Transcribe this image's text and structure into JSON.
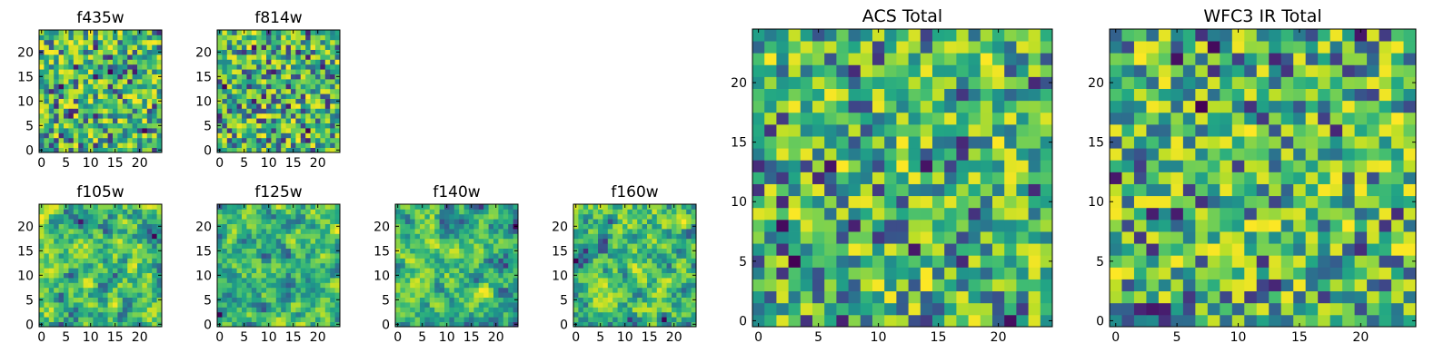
{
  "chart_data": [
    {
      "type": "heatmap",
      "title": "f435w",
      "xlabel": "",
      "ylabel": "",
      "xlim": [
        -0.5,
        24.5
      ],
      "ylim": [
        -0.5,
        24.5
      ],
      "xticks": [
        0,
        5,
        10,
        15,
        20
      ],
      "yticks": [
        0,
        5,
        10,
        15,
        20
      ],
      "grid": "25x25 pixel cutout, random-noise-like values",
      "colormap": "viridis",
      "seed": 11
    },
    {
      "type": "heatmap",
      "title": "f814w",
      "xlabel": "",
      "ylabel": "",
      "xlim": [
        -0.5,
        24.5
      ],
      "ylim": [
        -0.5,
        24.5
      ],
      "xticks": [
        0,
        5,
        10,
        15,
        20
      ],
      "yticks": [
        0,
        5,
        10,
        15,
        20
      ],
      "grid": "25x25 pixel cutout, random-noise-like values",
      "colormap": "viridis",
      "seed": 23
    },
    {
      "type": "heatmap",
      "title": "f105w",
      "xlabel": "",
      "ylabel": "",
      "xlim": [
        -0.5,
        24.5
      ],
      "ylim": [
        -0.5,
        24.5
      ],
      "xticks": [
        0,
        5,
        10,
        15,
        20
      ],
      "yticks": [
        0,
        5,
        10,
        15,
        20
      ],
      "grid": "25x25 pixel cutout, smoothed noise",
      "colormap": "viridis",
      "seed": 37
    },
    {
      "type": "heatmap",
      "title": "f125w",
      "xlabel": "",
      "ylabel": "",
      "xlim": [
        -0.5,
        24.5
      ],
      "ylim": [
        -0.5,
        24.5
      ],
      "xticks": [
        0,
        5,
        10,
        15,
        20
      ],
      "yticks": [
        0,
        5,
        10,
        15,
        20
      ],
      "grid": "25x25 pixel cutout, smoothed noise",
      "colormap": "viridis",
      "seed": 41
    },
    {
      "type": "heatmap",
      "title": "f140w",
      "xlabel": "",
      "ylabel": "",
      "xlim": [
        -0.5,
        24.5
      ],
      "ylim": [
        -0.5,
        24.5
      ],
      "xticks": [
        0,
        5,
        10,
        15,
        20
      ],
      "yticks": [
        0,
        5,
        10,
        15,
        20
      ],
      "grid": "25x25 pixel cutout, smoothed noise",
      "colormap": "viridis",
      "seed": 53
    },
    {
      "type": "heatmap",
      "title": "f160w",
      "xlabel": "",
      "ylabel": "",
      "xlim": [
        -0.5,
        24.5
      ],
      "ylim": [
        -0.5,
        24.5
      ],
      "xticks": [
        0,
        5,
        10,
        15,
        20
      ],
      "yticks": [
        0,
        5,
        10,
        15,
        20
      ],
      "grid": "25x25 pixel cutout, smoothed noise",
      "colormap": "viridis",
      "seed": 67
    },
    {
      "type": "heatmap",
      "title": "ACS Total",
      "xlabel": "",
      "ylabel": "",
      "xlim": [
        -0.5,
        24.5
      ],
      "ylim": [
        -0.5,
        24.5
      ],
      "xticks": [
        0,
        5,
        10,
        15,
        20
      ],
      "yticks": [
        0,
        5,
        10,
        15,
        20
      ],
      "grid": "25x25 pixel cutout, random-noise-like values",
      "colormap": "viridis",
      "seed": 79
    },
    {
      "type": "heatmap",
      "title": "WFC3 IR Total",
      "xlabel": "",
      "ylabel": "",
      "xlim": [
        -0.5,
        24.5
      ],
      "ylim": [
        -0.5,
        24.5
      ],
      "xticks": [
        0,
        5,
        10,
        15,
        20
      ],
      "yticks": [
        0,
        5,
        10,
        15,
        20
      ],
      "grid": "25x25 pixel cutout, random-noise-like values",
      "colormap": "viridis",
      "seed": 97
    }
  ]
}
